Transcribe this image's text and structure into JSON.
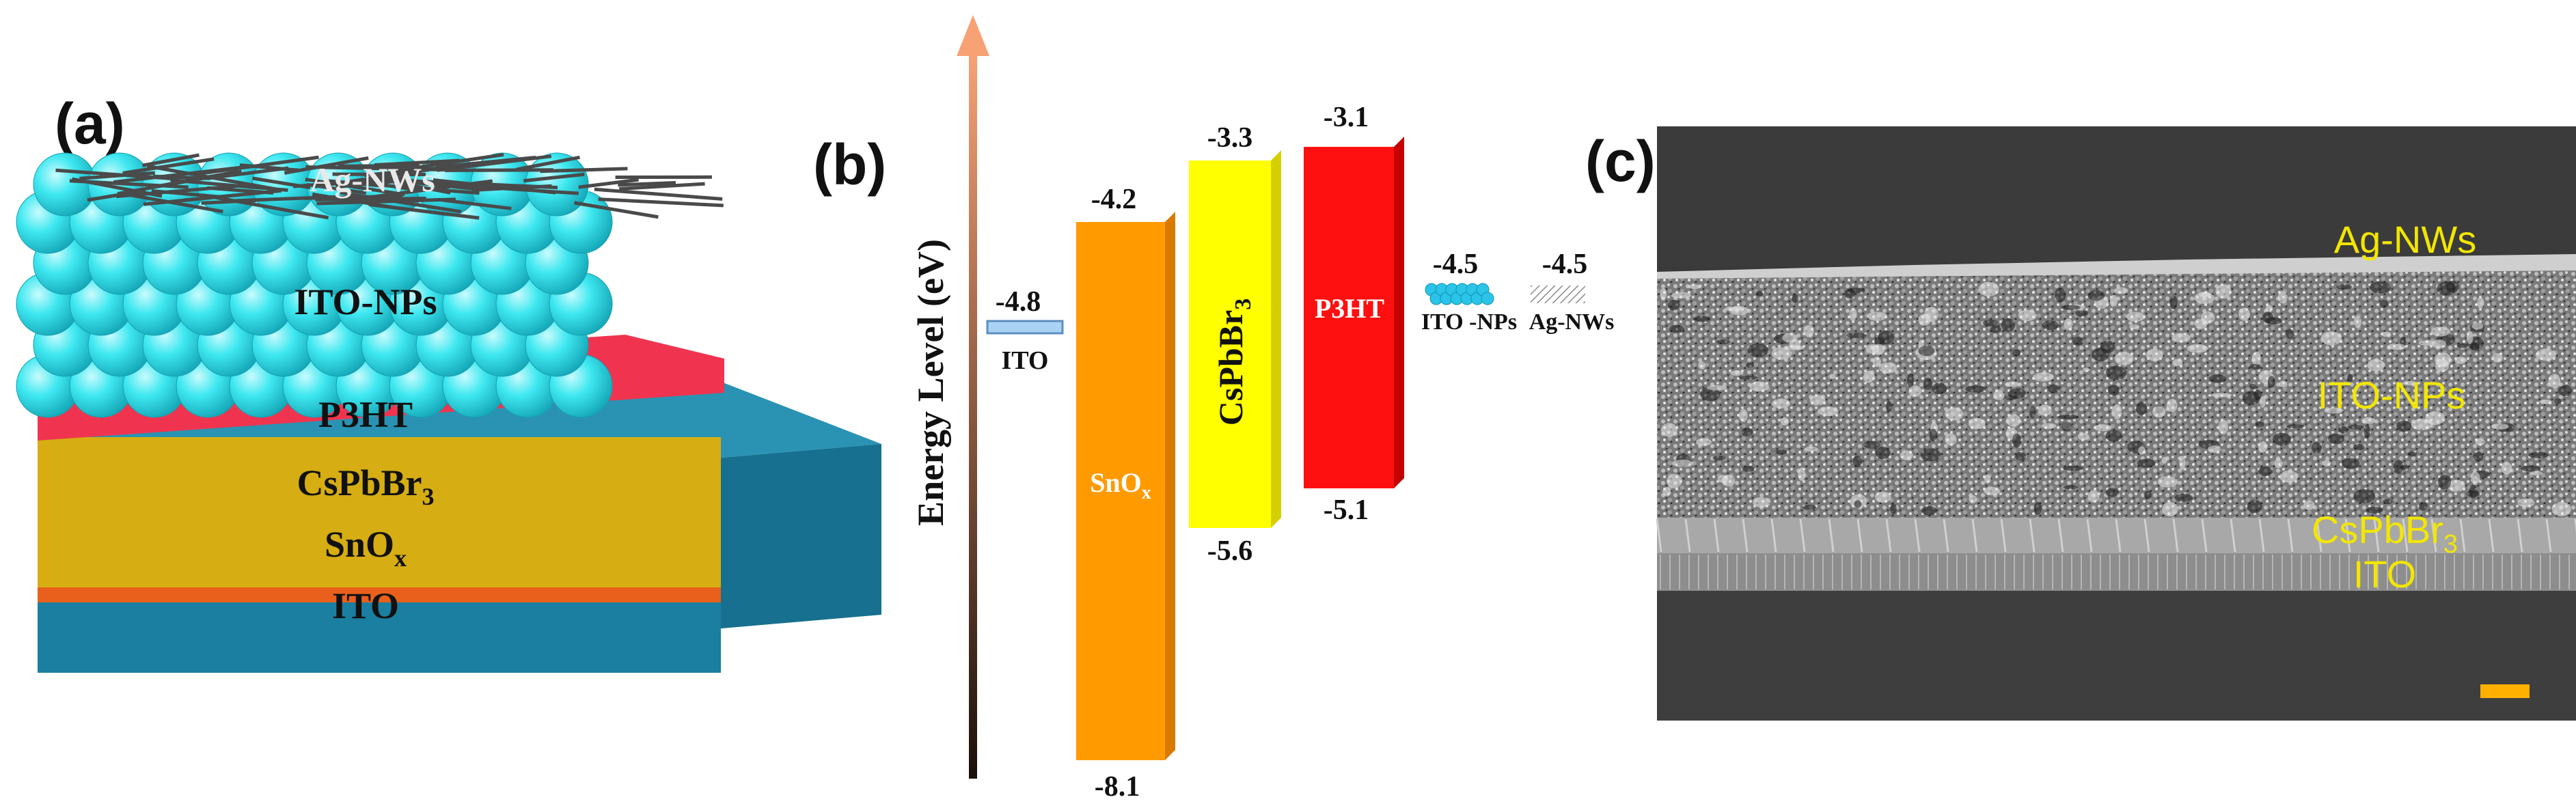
{
  "panels": {
    "a": {
      "label": "(a)",
      "layers": {
        "ag_nws": "Ag-NWs",
        "ito_nps": "ITO-NPs",
        "p3ht": "P3HT",
        "cspbbr3": "CsPbBr",
        "cspbbr3_sub": "3",
        "snox": "SnO",
        "snox_sub": "x",
        "ito": "ITO"
      },
      "colors": {
        "ito_nps": "#2fe6ee",
        "p3ht": "#f0344f",
        "cspbbr3": "#d9b218",
        "snox": "#e8601c",
        "ito": "#1d85a6"
      }
    },
    "b": {
      "label": "(b)",
      "axis_label": "Energy Level (eV)",
      "levels": {
        "ito": {
          "name": "ITO",
          "value": "-4.8"
        },
        "snox": {
          "name": "SnO",
          "sub": "x",
          "top": "-4.2",
          "bottom": "-8.1"
        },
        "cspbbr3": {
          "name": "CsPbBr",
          "sub": "3",
          "top": "-3.3",
          "bottom": "-5.6"
        },
        "p3ht": {
          "name": "P3HT",
          "top": "-3.1",
          "bottom": "-5.1"
        },
        "ito_nps": {
          "name": "ITO -NPs",
          "value": "-4.5"
        },
        "ag_nws": {
          "name": "Ag-NWs",
          "value": "-4.5"
        }
      },
      "colors": {
        "snox": "#ff9a00",
        "cspbbr3": "#ffff00",
        "p3ht": "#ff1010",
        "ito": "#a9d2f4",
        "ito_nps": "#29c4e8",
        "ag_nws": "#9a9a9a"
      }
    },
    "c": {
      "label": "(c)",
      "labels": {
        "ag_nws": "Ag-NWs",
        "ito_nps": "ITO-NPs",
        "cspbbr3": "CsPbBr",
        "cspbbr3_sub": "3",
        "ito": "ITO"
      },
      "label_color": "#f2e600",
      "scale_bar_color": "#ffb000"
    }
  }
}
